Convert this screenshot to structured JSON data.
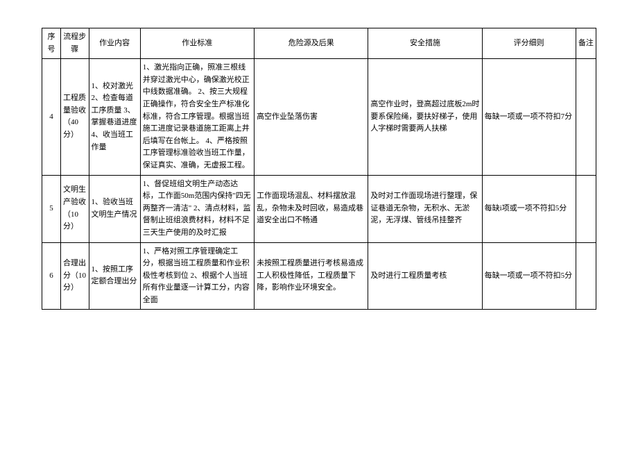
{
  "headers": {
    "seq": "序号",
    "step": "流程步骤",
    "content": "作业内容",
    "standard": "作业标准",
    "risk": "危险源及后果",
    "measure": "安全措施",
    "score": "评分细则",
    "note": "备注"
  },
  "rows": [
    {
      "seq": "4",
      "step": "工程质量验收（40分）",
      "content": "1、校对激光\n2、检查每道工序质量\n3、掌握巷道进度\n4、收当班工作量",
      "standard": "1、激光指向正确，照准三根线并穿过激光中心，确保激光校正中线数据准确。\n2、按三大规程正确操作，符合安全生产标准化标准，符合工序管理。根据当班施工进度记录巷道施工距离上井后填写在台帐上。\n4、严格按照工序管理标准验收当班工作量，保证真实、准确，无虚报工程。",
      "risk": "高空作业坠落伤害",
      "measure": "高空作业时，登高超过底板2m时要系保险绳，要扶好梯子，使用人字梯时需要两人扶梯",
      "score": "每缺一项或一项不符扣7分",
      "note": ""
    },
    {
      "seq": "5",
      "step": "文明生产验收（10分）",
      "content": "1、验收当班文明生产情况",
      "standard": "1、督促班组文明生产动态达标，工作面50m范围内保持\"四无两整齐一清洁\"\n2、清点材料，监督制止班组浪费材料，材料不足三天生产使用的及时汇报",
      "risk": "工作面现场混乱、材料摆放混乱，杂物未及时回收，易造成巷道安全出口不畅通",
      "measure": "及时对工作面现场进行整理，保证巷道无杂物，无积水、无淤泥，无浮煤、管线吊挂整齐",
      "score": "每缺i项或一项不符扣5分",
      "note": ""
    },
    {
      "seq": "6",
      "step": "合理出分（10分）",
      "content": "1、按照工序定额合理出分",
      "standard": "1、严格对照工序管理确定工分，根据当班工程质量和作业积极性考核到位\n2、根据个人当班所有作业量逐一计算工分，内容全面",
      "risk": "未按照工程质量进行考核易造成工人积极性降低，工程质量下降，影响作业环境安全。",
      "measure": "及时进行工程质量考核",
      "score": "每缺一项或一项不符扣5分",
      "note": ""
    }
  ]
}
